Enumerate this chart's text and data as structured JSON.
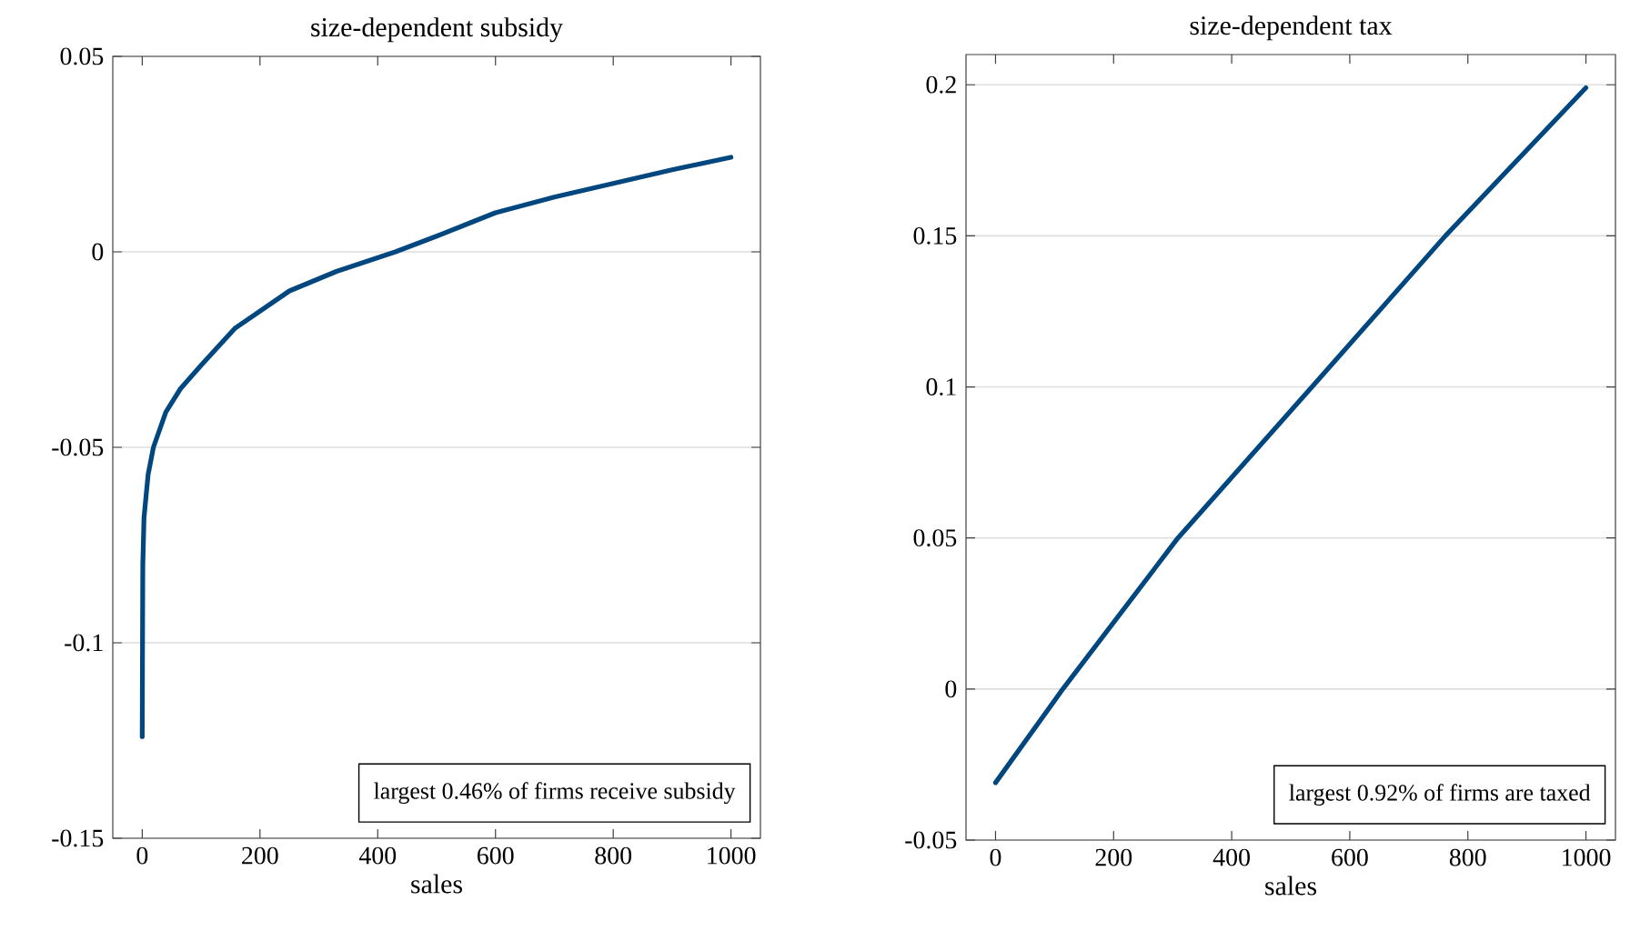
{
  "chart_data": [
    {
      "type": "line",
      "title": "size-dependent subsidy",
      "xlabel": "sales",
      "x": [
        0,
        0.5,
        1,
        3,
        10,
        19,
        40,
        65,
        100,
        158,
        250,
        330,
        430,
        500,
        600,
        700,
        800,
        900,
        1000
      ],
      "series": [
        {
          "color": "#00467f",
          "values": [
            -0.124,
            -0.1,
            -0.08,
            -0.068,
            -0.057,
            -0.05,
            -0.041,
            -0.035,
            -0.029,
            -0.0195,
            -0.01,
            -0.005,
            0,
            0.004,
            0.01,
            0.014,
            0.0175,
            0.021,
            0.0242
          ]
        }
      ],
      "xlim": [
        -50,
        1050
      ],
      "ylim": [
        -0.15,
        0.05
      ],
      "xticks": [
        0,
        200,
        400,
        600,
        800,
        1000
      ],
      "yticks": [
        -0.15,
        -0.1,
        -0.05,
        0,
        0.05
      ],
      "grid": "y",
      "annotations": [
        "largest 0.46% of firms receive subsidy"
      ]
    },
    {
      "type": "line",
      "title": "size-dependent tax",
      "xlabel": "sales",
      "x": [
        0,
        114,
        309,
        536,
        762,
        1000
      ],
      "series": [
        {
          "color": "#00467f",
          "values": [
            -0.031,
            0,
            0.05,
            0.1,
            0.15,
            0.199
          ]
        }
      ],
      "xlim": [
        -50,
        1050
      ],
      "ylim": [
        -0.05,
        0.21
      ],
      "xticks": [
        0,
        200,
        400,
        600,
        800,
        1000
      ],
      "yticks": [
        -0.05,
        0,
        0.05,
        0.1,
        0.15,
        0.2
      ],
      "grid": "y",
      "annotations": [
        "largest 0.92% of firms are taxed"
      ]
    }
  ]
}
